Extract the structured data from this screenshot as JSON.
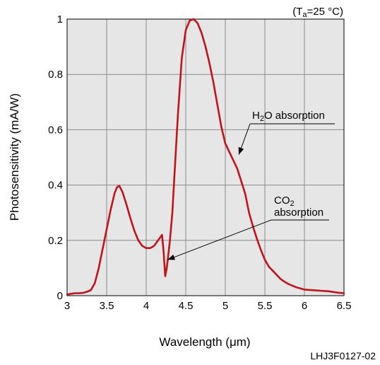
{
  "chart_data": {
    "type": "line",
    "title": "",
    "xlabel": "Wavelength (μm)",
    "ylabel": "Photosensitivity (mA/W)",
    "xlim": [
      3,
      6.5
    ],
    "ylim": [
      0,
      1
    ],
    "grid": true,
    "legend": "none",
    "x_ticks": [
      3,
      3.5,
      4,
      4.5,
      5,
      5.5,
      6,
      6.5
    ],
    "x_tick_labels": [
      "3",
      "3.5",
      "4",
      "4.5",
      "5",
      "5.5",
      "6",
      "6.5"
    ],
    "y_ticks": [
      0,
      0.2,
      0.4,
      0.6,
      0.8,
      1
    ],
    "y_tick_labels": [
      "0",
      "0.2",
      "0.4",
      "0.6",
      "0.8",
      "1"
    ],
    "condition": {
      "prefix": "(T",
      "subscript": "a",
      "suffix": "=25 °C)"
    },
    "annotations": {
      "h2o": {
        "main": "H",
        "sub": "2",
        "rest": "O absorption",
        "target_x": 5.17,
        "target_y": 0.51
      },
      "co2": {
        "line1_main": "CO",
        "line1_sub": "2",
        "line2": "absorption",
        "target_x": 4.27,
        "target_y": 0.13
      }
    },
    "series": [
      {
        "color": "#c0141c",
        "x": [
          3.0,
          3.05,
          3.1,
          3.15,
          3.2,
          3.25,
          3.3,
          3.35,
          3.4,
          3.45,
          3.5,
          3.55,
          3.6,
          3.63,
          3.66,
          3.7,
          3.75,
          3.8,
          3.85,
          3.9,
          3.95,
          4.0,
          4.05,
          4.1,
          4.15,
          4.18,
          4.2,
          4.22,
          4.24,
          4.26,
          4.28,
          4.3,
          4.33,
          4.36,
          4.4,
          4.45,
          4.5,
          4.55,
          4.6,
          4.65,
          4.7,
          4.75,
          4.8,
          4.85,
          4.9,
          4.95,
          5.0,
          5.05,
          5.1,
          5.15,
          5.2,
          5.25,
          5.3,
          5.35,
          5.4,
          5.45,
          5.5,
          5.55,
          5.6,
          5.65,
          5.7,
          5.75,
          5.8,
          5.85,
          5.9,
          5.95,
          6.0,
          6.1,
          6.2,
          6.3,
          6.4,
          6.45,
          6.5
        ],
        "y": [
          0.004,
          0.007,
          0.009,
          0.009,
          0.01,
          0.014,
          0.02,
          0.045,
          0.1,
          0.17,
          0.24,
          0.31,
          0.37,
          0.392,
          0.397,
          0.375,
          0.33,
          0.28,
          0.235,
          0.2,
          0.18,
          0.172,
          0.172,
          0.18,
          0.2,
          0.212,
          0.22,
          0.16,
          0.07,
          0.1,
          0.15,
          0.2,
          0.3,
          0.45,
          0.65,
          0.86,
          0.96,
          0.995,
          1.0,
          0.985,
          0.95,
          0.9,
          0.84,
          0.77,
          0.69,
          0.61,
          0.55,
          0.52,
          0.49,
          0.46,
          0.415,
          0.37,
          0.3,
          0.25,
          0.205,
          0.165,
          0.13,
          0.105,
          0.09,
          0.075,
          0.06,
          0.05,
          0.042,
          0.036,
          0.03,
          0.026,
          0.022,
          0.02,
          0.018,
          0.016,
          0.012,
          0.01,
          0.009
        ]
      }
    ]
  },
  "figure_code": "LHJ3F0127-02"
}
